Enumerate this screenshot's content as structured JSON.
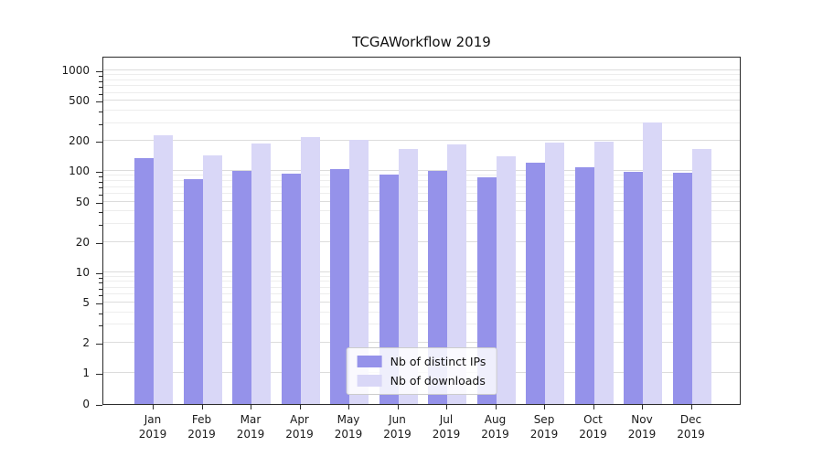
{
  "title": "TCGAWorkflow 2019",
  "legend": {
    "items": [
      {
        "label": "Nb of distinct IPs",
        "color": "#9592ea"
      },
      {
        "label": "Nb of downloads",
        "color": "#d9d7f7"
      }
    ]
  },
  "chart_data": {
    "type": "bar",
    "title": "TCGAWorkflow 2019",
    "categories": [
      "Jan 2019",
      "Feb 2019",
      "Mar 2019",
      "Apr 2019",
      "May 2019",
      "Jun 2019",
      "Jul 2019",
      "Aug 2019",
      "Sep 2019",
      "Oct 2019",
      "Nov 2019",
      "Dec 2019"
    ],
    "series": [
      {
        "name": "Nb of distinct IPs",
        "color": "#9592ea",
        "values": [
          135,
          83,
          100,
          95,
          106,
          93,
          100,
          87,
          122,
          110,
          99,
          96
        ]
      },
      {
        "name": "Nb of downloads",
        "color": "#d9d7f7",
        "values": [
          228,
          143,
          187,
          218,
          205,
          167,
          186,
          140,
          191,
          198,
          305,
          166
        ]
      }
    ],
    "xlabel": "",
    "ylabel": "",
    "yscale": "symlog",
    "yticks": [
      0,
      1,
      2,
      5,
      10,
      20,
      50,
      100,
      200,
      500,
      1000
    ],
    "minor_gridline_values": [
      3,
      4,
      6,
      7,
      8,
      9,
      30,
      40,
      60,
      70,
      80,
      90,
      300,
      400,
      600,
      700,
      800,
      900
    ],
    "ylim": [
      0,
      1400
    ],
    "grid": true,
    "legend_position": "lower center"
  }
}
